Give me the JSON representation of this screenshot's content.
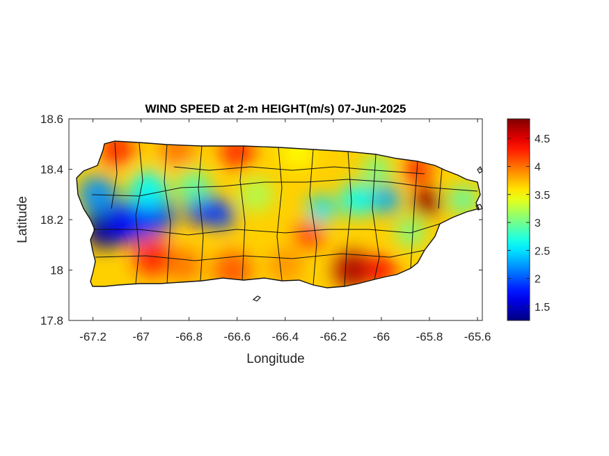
{
  "figure": {
    "title": "WIND SPEED at 2-m HEIGHT(m/s) 07-Jun-2025",
    "xlabel": "Longitude",
    "ylabel": "Latitude"
  },
  "axes": {
    "xlim": [
      -67.3,
      -65.58
    ],
    "ylim": [
      17.8,
      18.6
    ],
    "xticks": [
      -67.2,
      -67,
      -66.8,
      -66.6,
      -66.4,
      -66.2,
      -66,
      -65.8,
      -65.6
    ],
    "xtick_labels": [
      "-67.2",
      "-67",
      "-66.8",
      "-66.6",
      "-66.4",
      "-66.2",
      "-66",
      "-65.8",
      "-65.6"
    ],
    "yticks": [
      17.8,
      18,
      18.2,
      18.4,
      18.6
    ],
    "ytick_labels": [
      "17.8",
      "18",
      "18.2",
      "18.4",
      "18.6"
    ]
  },
  "colorbar": {
    "colormap": "jet",
    "range": [
      1.25,
      4.85
    ],
    "ticks": [
      1.5,
      2,
      2.5,
      3,
      3.5,
      4,
      4.5
    ],
    "tick_labels": [
      "1.5",
      "2",
      "2.5",
      "3",
      "3.5",
      "4",
      "4.5"
    ],
    "colors": [
      "#00008f",
      "#0000ff",
      "#00ffff",
      "#ffff00",
      "#ff0000",
      "#800000"
    ]
  },
  "chart_data": {
    "type": "heatmap",
    "variable": "WIND SPEED at 2-m HEIGHT",
    "units": "m/s",
    "date": "07-Jun-2025",
    "region_lon": [
      -67.27,
      -65.6
    ],
    "region_lat": [
      17.93,
      18.52
    ],
    "value_range": [
      1.25,
      4.85
    ],
    "features": [
      {
        "lon": -67.15,
        "lat": 18.17,
        "value": 1.3,
        "radius_deg": 0.09
      },
      {
        "lon": -67.05,
        "lat": 18.19,
        "value": 1.7,
        "radius_deg": 0.09
      },
      {
        "lon": -66.95,
        "lat": 18.22,
        "value": 1.9,
        "radius_deg": 0.09
      },
      {
        "lon": -66.75,
        "lat": 18.25,
        "value": 1.7,
        "radius_deg": 0.07
      },
      {
        "lon": -66.67,
        "lat": 18.22,
        "value": 1.9,
        "radius_deg": 0.06
      },
      {
        "lon": -67.18,
        "lat": 18.3,
        "value": 2.2,
        "radius_deg": 0.08
      },
      {
        "lon": -66.97,
        "lat": 18.32,
        "value": 2.6,
        "radius_deg": 0.08
      },
      {
        "lon": -66.78,
        "lat": 18.33,
        "value": 2.9,
        "radius_deg": 0.07
      },
      {
        "lon": -66.25,
        "lat": 18.24,
        "value": 2.5,
        "radius_deg": 0.06
      },
      {
        "lon": -66.1,
        "lat": 18.28,
        "value": 2.6,
        "radius_deg": 0.07
      },
      {
        "lon": -65.98,
        "lat": 18.28,
        "value": 2.3,
        "radius_deg": 0.06
      },
      {
        "lon": -66.52,
        "lat": 18.3,
        "value": 3.2,
        "radius_deg": 0.07
      },
      {
        "lon": -66.02,
        "lat": 18.4,
        "value": 3.0,
        "radius_deg": 0.06
      },
      {
        "lon": -65.88,
        "lat": 18.15,
        "value": 3.0,
        "radius_deg": 0.06
      },
      {
        "lon": -65.66,
        "lat": 18.28,
        "value": 2.9,
        "radius_deg": 0.06
      },
      {
        "lon": -67.1,
        "lat": 18.48,
        "value": 4.3,
        "radius_deg": 0.07
      },
      {
        "lon": -66.85,
        "lat": 18.48,
        "value": 4.0,
        "radius_deg": 0.07
      },
      {
        "lon": -66.6,
        "lat": 18.47,
        "value": 4.3,
        "radius_deg": 0.07
      },
      {
        "lon": -66.35,
        "lat": 18.47,
        "value": 3.5,
        "radius_deg": 0.07
      },
      {
        "lon": -66.95,
        "lat": 18.05,
        "value": 4.3,
        "radius_deg": 0.08
      },
      {
        "lon": -66.82,
        "lat": 18.02,
        "value": 4.0,
        "radius_deg": 0.07
      },
      {
        "lon": -66.62,
        "lat": 18.0,
        "value": 4.1,
        "radius_deg": 0.08
      },
      {
        "lon": -66.4,
        "lat": 18.02,
        "value": 3.9,
        "radius_deg": 0.07
      },
      {
        "lon": -66.3,
        "lat": 18.14,
        "value": 4.2,
        "radius_deg": 0.06
      },
      {
        "lon": -66.12,
        "lat": 18.0,
        "value": 4.7,
        "radius_deg": 0.08
      },
      {
        "lon": -66.0,
        "lat": 18.0,
        "value": 4.4,
        "radius_deg": 0.06
      },
      {
        "lon": -65.81,
        "lat": 18.27,
        "value": 4.8,
        "radius_deg": 0.06
      },
      {
        "lon": -65.85,
        "lat": 18.4,
        "value": 4.3,
        "radius_deg": 0.06
      }
    ]
  }
}
